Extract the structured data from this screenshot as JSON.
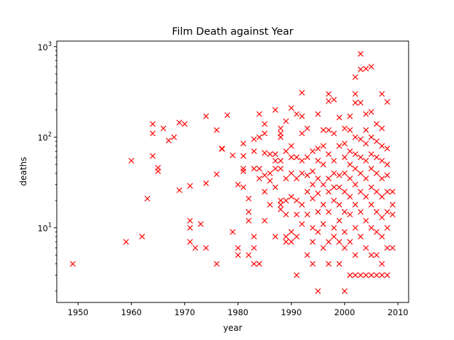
{
  "chart_data": {
    "type": "scatter",
    "title": "Film Death against Year",
    "xlabel": "year",
    "ylabel": "deaths",
    "yscale": "log",
    "xlim": [
      1946,
      2012
    ],
    "ylim": [
      1.5,
      1150
    ],
    "xticks": [
      "1950",
      "1960",
      "1970",
      "1980",
      "1990",
      "2000",
      "2010"
    ],
    "yticks": [
      {
        "value": 10,
        "base": "10",
        "exp": "1"
      },
      {
        "value": 100,
        "base": "10",
        "exp": "2"
      },
      {
        "value": 1000,
        "base": "10",
        "exp": "3"
      }
    ],
    "grid": false,
    "legend": "none",
    "marker": "x",
    "color": "#ff0000",
    "series": [
      {
        "points": [
          [
            1949,
            4
          ],
          [
            1959,
            7
          ],
          [
            1960,
            55
          ],
          [
            1962,
            8
          ],
          [
            1963,
            21
          ],
          [
            1964,
            140
          ],
          [
            1964,
            110
          ],
          [
            1964,
            62
          ],
          [
            1965,
            46
          ],
          [
            1965,
            42
          ],
          [
            1966,
            125
          ],
          [
            1967,
            92
          ],
          [
            1968,
            100
          ],
          [
            1969,
            145
          ],
          [
            1969,
            26
          ],
          [
            1970,
            140
          ],
          [
            1971,
            29
          ],
          [
            1971,
            12
          ],
          [
            1971,
            10
          ],
          [
            1971,
            7
          ],
          [
            1972,
            6
          ],
          [
            1973,
            11
          ],
          [
            1974,
            170
          ],
          [
            1974,
            31
          ],
          [
            1974,
            6
          ],
          [
            1976,
            120
          ],
          [
            1976,
            39
          ],
          [
            1976,
            4
          ],
          [
            1977,
            75
          ],
          [
            1977,
            74
          ],
          [
            1978,
            175
          ],
          [
            1979,
            63
          ],
          [
            1979,
            9
          ],
          [
            1980,
            30
          ],
          [
            1980,
            6
          ],
          [
            1980,
            5
          ],
          [
            1981,
            85
          ],
          [
            1981,
            62
          ],
          [
            1981,
            45
          ],
          [
            1981,
            42
          ],
          [
            1981,
            28
          ],
          [
            1982,
            21
          ],
          [
            1982,
            15
          ],
          [
            1982,
            12
          ],
          [
            1982,
            5
          ],
          [
            1983,
            95
          ],
          [
            1983,
            70
          ],
          [
            1983,
            45
          ],
          [
            1983,
            8
          ],
          [
            1983,
            6
          ],
          [
            1983,
            4
          ],
          [
            1984,
            180
          ],
          [
            1984,
            100
          ],
          [
            1984,
            45
          ],
          [
            1984,
            35
          ],
          [
            1984,
            4
          ],
          [
            1985,
            140
          ],
          [
            1985,
            110
          ],
          [
            1985,
            67
          ],
          [
            1985,
            38
          ],
          [
            1985,
            25
          ],
          [
            1985,
            12
          ],
          [
            1986,
            65
          ],
          [
            1986,
            40
          ],
          [
            1986,
            33
          ],
          [
            1986,
            18
          ],
          [
            1987,
            200
          ],
          [
            1987,
            65
          ],
          [
            1987,
            55
          ],
          [
            1987,
            45
          ],
          [
            1987,
            28
          ],
          [
            1987,
            8
          ],
          [
            1988,
            125
          ],
          [
            1988,
            110
          ],
          [
            1988,
            100
          ],
          [
            1988,
            55
          ],
          [
            1988,
            45
          ],
          [
            1988,
            20
          ],
          [
            1988,
            18
          ],
          [
            1988,
            16
          ],
          [
            1989,
            150
          ],
          [
            1989,
            70
          ],
          [
            1989,
            35
          ],
          [
            1989,
            20
          ],
          [
            1989,
            14
          ],
          [
            1989,
            8
          ],
          [
            1989,
            7
          ],
          [
            1990,
            210
          ],
          [
            1990,
            80
          ],
          [
            1990,
            60
          ],
          [
            1990,
            40
          ],
          [
            1990,
            22
          ],
          [
            1990,
            9
          ],
          [
            1990,
            7
          ],
          [
            1991,
            180
          ],
          [
            1991,
            60
          ],
          [
            1991,
            35
          ],
          [
            1991,
            20
          ],
          [
            1991,
            14
          ],
          [
            1991,
            8
          ],
          [
            1991,
            3
          ],
          [
            1992,
            310
          ],
          [
            1992,
            170
          ],
          [
            1992,
            110
          ],
          [
            1992,
            55
          ],
          [
            1992,
            40
          ],
          [
            1992,
            18
          ],
          [
            1992,
            11
          ],
          [
            1993,
            125
          ],
          [
            1993,
            60
          ],
          [
            1993,
            38
          ],
          [
            1993,
            25
          ],
          [
            1993,
            14
          ],
          [
            1993,
            5
          ],
          [
            1994,
            70
          ],
          [
            1994,
            42
          ],
          [
            1994,
            30
          ],
          [
            1994,
            21
          ],
          [
            1994,
            10
          ],
          [
            1994,
            7
          ],
          [
            1994,
            4
          ],
          [
            1995,
            180
          ],
          [
            1995,
            75
          ],
          [
            1995,
            55
          ],
          [
            1995,
            35
          ],
          [
            1995,
            24
          ],
          [
            1995,
            15
          ],
          [
            1995,
            9
          ],
          [
            1995,
            2
          ],
          [
            1996,
            120
          ],
          [
            1996,
            80
          ],
          [
            1996,
            50
          ],
          [
            1996,
            30
          ],
          [
            1996,
            18
          ],
          [
            1996,
            11
          ],
          [
            1996,
            6
          ],
          [
            1997,
            300
          ],
          [
            1997,
            250
          ],
          [
            1997,
            120
          ],
          [
            1997,
            65
          ],
          [
            1997,
            35
          ],
          [
            1997,
            25
          ],
          [
            1997,
            15
          ],
          [
            1997,
            7
          ],
          [
            1997,
            4
          ],
          [
            1998,
            260
          ],
          [
            1998,
            110
          ],
          [
            1998,
            55
          ],
          [
            1998,
            40
          ],
          [
            1998,
            28
          ],
          [
            1998,
            20
          ],
          [
            1998,
            10
          ],
          [
            1998,
            8
          ],
          [
            1999,
            165
          ],
          [
            1999,
            80
          ],
          [
            1999,
            38
          ],
          [
            1999,
            28
          ],
          [
            1999,
            18
          ],
          [
            1999,
            12
          ],
          [
            1999,
            7
          ],
          [
            1999,
            4
          ],
          [
            2000,
            125
          ],
          [
            2000,
            85
          ],
          [
            2000,
            60
          ],
          [
            2000,
            40
          ],
          [
            2000,
            25
          ],
          [
            2000,
            15
          ],
          [
            2000,
            9
          ],
          [
            2000,
            6
          ],
          [
            2000,
            2
          ],
          [
            2001,
            170
          ],
          [
            2001,
            120
          ],
          [
            2001,
            70
          ],
          [
            2001,
            50
          ],
          [
            2001,
            35
          ],
          [
            2001,
            22
          ],
          [
            2001,
            14
          ],
          [
            2001,
            7
          ],
          [
            2001,
            3
          ],
          [
            2002,
            460
          ],
          [
            2002,
            300
          ],
          [
            2002,
            240
          ],
          [
            2002,
            100
          ],
          [
            2002,
            65
          ],
          [
            2002,
            45
          ],
          [
            2002,
            30
          ],
          [
            2002,
            18
          ],
          [
            2002,
            10
          ],
          [
            2002,
            5
          ],
          [
            2002,
            3
          ],
          [
            2003,
            830
          ],
          [
            2003,
            560
          ],
          [
            2003,
            240
          ],
          [
            2003,
            95
          ],
          [
            2003,
            60
          ],
          [
            2003,
            40
          ],
          [
            2003,
            25
          ],
          [
            2003,
            15
          ],
          [
            2003,
            8
          ],
          [
            2003,
            3
          ],
          [
            2004,
            570
          ],
          [
            2004,
            180
          ],
          [
            2004,
            120
          ],
          [
            2004,
            85
          ],
          [
            2004,
            55
          ],
          [
            2004,
            35
          ],
          [
            2004,
            22
          ],
          [
            2004,
            12
          ],
          [
            2004,
            6
          ],
          [
            2004,
            3
          ],
          [
            2005,
            600
          ],
          [
            2005,
            190
          ],
          [
            2005,
            100
          ],
          [
            2005,
            65
          ],
          [
            2005,
            45
          ],
          [
            2005,
            28
          ],
          [
            2005,
            18
          ],
          [
            2005,
            10
          ],
          [
            2005,
            5
          ],
          [
            2005,
            3
          ],
          [
            2006,
            140
          ],
          [
            2006,
            90
          ],
          [
            2006,
            60
          ],
          [
            2006,
            40
          ],
          [
            2006,
            25
          ],
          [
            2006,
            15
          ],
          [
            2006,
            9
          ],
          [
            2006,
            5
          ],
          [
            2006,
            3
          ],
          [
            2007,
            300
          ],
          [
            2007,
            125
          ],
          [
            2007,
            80
          ],
          [
            2007,
            55
          ],
          [
            2007,
            35
          ],
          [
            2007,
            22
          ],
          [
            2007,
            13
          ],
          [
            2007,
            8
          ],
          [
            2007,
            4
          ],
          [
            2007,
            3
          ],
          [
            2008,
            245
          ],
          [
            2008,
            75
          ],
          [
            2008,
            50
          ],
          [
            2008,
            38
          ],
          [
            2008,
            25
          ],
          [
            2008,
            15
          ],
          [
            2008,
            10
          ],
          [
            2008,
            6
          ],
          [
            2008,
            3
          ],
          [
            2009,
            25
          ],
          [
            2009,
            18
          ],
          [
            2009,
            14
          ],
          [
            2009,
            6
          ]
        ]
      }
    ]
  }
}
